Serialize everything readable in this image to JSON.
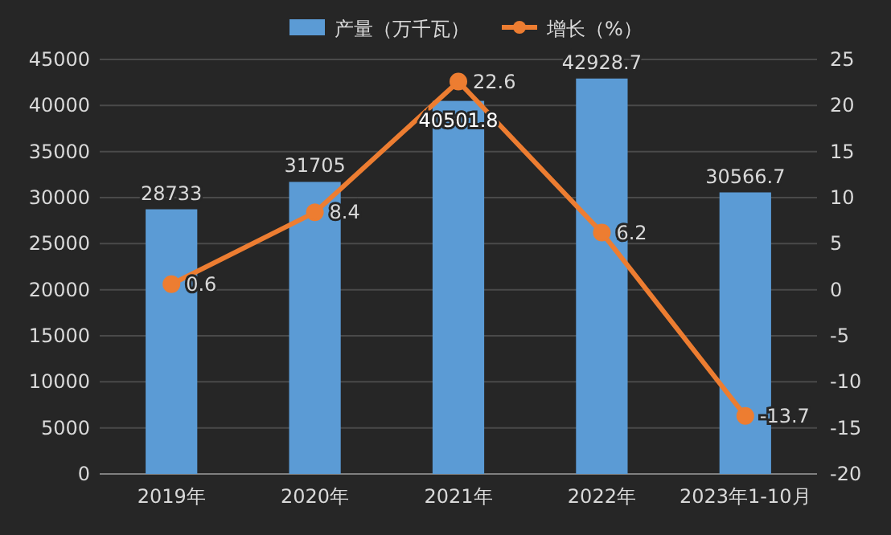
{
  "chart_data": {
    "type": "bar",
    "categories": [
      "2019年",
      "2020年",
      "2021年",
      "2022年",
      "2023年1-10月"
    ],
    "series": [
      {
        "name": "产量（万千瓦）",
        "color": "#5b9bd5",
        "values": [
          28733,
          31705,
          40501.8,
          42928.7,
          30566.7
        ]
      },
      {
        "name": "增长（%）",
        "type": "line",
        "axis": "y2",
        "color": "#ed7d31",
        "values": [
          0.6,
          8.4,
          22.6,
          6.2,
          -13.7
        ]
      }
    ],
    "ylim": [
      0,
      45000
    ],
    "yticks": [
      0,
      5000,
      10000,
      15000,
      20000,
      25000,
      30000,
      35000,
      40000,
      45000
    ],
    "y2lim": [
      -20,
      25
    ],
    "y2ticks": [
      -20,
      -15,
      -10,
      -5,
      0,
      5,
      10,
      15,
      20,
      25
    ],
    "grid": "y",
    "legend": "top",
    "data_labels": true,
    "marker": "circle",
    "line_style": "solid"
  }
}
